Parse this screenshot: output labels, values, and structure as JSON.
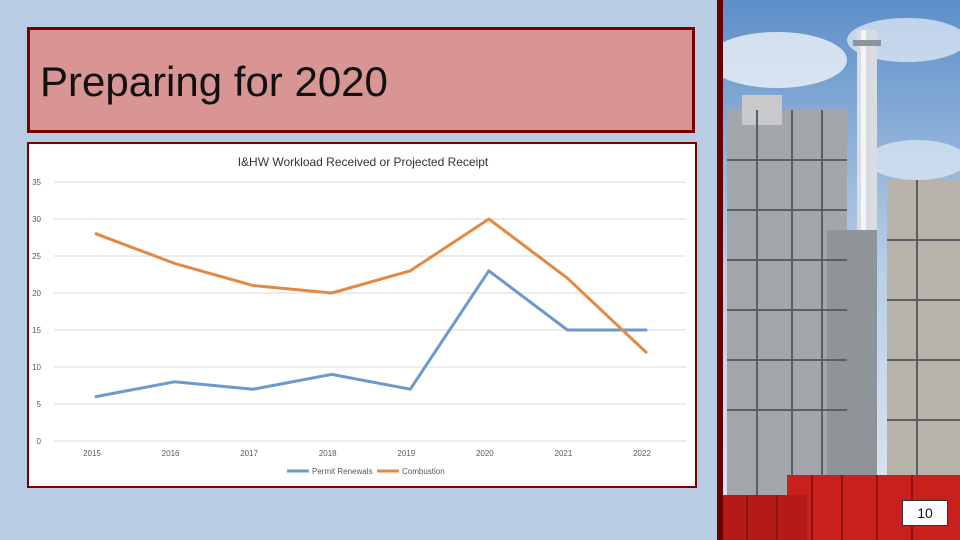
{
  "slide": {
    "title": "Preparing for 2020",
    "page_number": "10"
  },
  "photo": {
    "icon": "industrial-plant-photo"
  },
  "chart_data": {
    "type": "line",
    "title": "I&HW Workload Received or Projected Receipt",
    "xlabel": "",
    "ylabel": "",
    "categories": [
      "2015",
      "2016",
      "2017",
      "2018",
      "2019",
      "2020",
      "2021",
      "2022"
    ],
    "ylim": [
      0,
      35
    ],
    "yticks": [
      0,
      5,
      10,
      15,
      20,
      25,
      30,
      35
    ],
    "grid": true,
    "legend": "bottom",
    "series": [
      {
        "name": "Permit Renewals",
        "color": "#6c9acb",
        "values": [
          6,
          8,
          7,
          9,
          7,
          23,
          15,
          15
        ]
      },
      {
        "name": "Combustion",
        "color": "#e08a45",
        "values": [
          28,
          24,
          21,
          20,
          23,
          30,
          22,
          12
        ]
      }
    ]
  }
}
